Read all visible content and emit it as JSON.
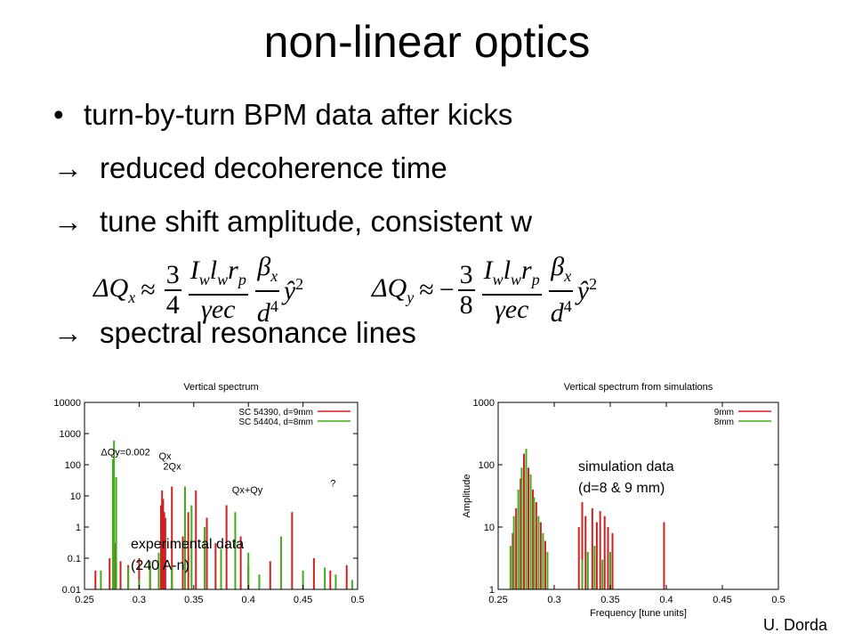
{
  "slide": {
    "title": "non-linear optics",
    "bullet": "•",
    "arrow": "→",
    "line1": "turn-by-turn BPM data after kicks",
    "line2": "reduced decoherence time",
    "line3": "tune shift amplitude, consistent w",
    "line4": "spectral resonance lines",
    "credit": "U. Dorda"
  },
  "formulas": {
    "left": {
      "lhs": "ΔQ",
      "sub": "x",
      "rel": "≈",
      "sign": "",
      "coef_num": "3",
      "coef_den": "4",
      "frac1_num": "I_w l_w r_p",
      "frac1_den": "γec",
      "frac2_num": "β",
      "frac2_sub": "x",
      "frac2_den": "d",
      "frac2_den_sup": "4",
      "tail": "ŷ",
      "tail_sup": "2"
    },
    "right": {
      "lhs": "ΔQ",
      "sub": "y",
      "rel": "≈",
      "sign": "−",
      "coef_num": "3",
      "coef_den": "8",
      "frac1_num": "I_w l_w r_p",
      "frac1_den": "γec",
      "frac2_num": "β",
      "frac2_sub": "x",
      "frac2_den": "d",
      "frac2_den_sup": "4",
      "tail": "ŷ",
      "tail_sup": "2"
    }
  },
  "labels": {
    "exp_line1": "experimental data",
    "exp_line2": "(240 A-n)",
    "sim_line1": "simulation data",
    "sim_line2": "(d=8 & 9 mm)"
  },
  "chart_data": [
    {
      "type": "bar",
      "title": "Vertical spectrum",
      "xlabel": "",
      "ylabel": "",
      "yscale": "log",
      "xlim": [
        0.25,
        0.5
      ],
      "ylim": [
        0.01,
        10000
      ],
      "xticks": [
        "0.25",
        "0.3",
        "0.35",
        "0.4",
        "0.45",
        "0.5"
      ],
      "yticks": [
        "0.01",
        "0.1",
        "1",
        "10",
        "100",
        "1000",
        "10000"
      ],
      "legend_position": "top-right",
      "grid": false,
      "colors": {
        "SC 54390, d=9mm": "#cc2222",
        "SC 54404, d=8mm": "#44aa22"
      },
      "series": [
        {
          "name": "SC 54390, d=9mm",
          "x": [
            0.26,
            0.273,
            0.278,
            0.283,
            0.29,
            0.3,
            0.31,
            0.32,
            0.321,
            0.322,
            0.323,
            0.324,
            0.33,
            0.34,
            0.345,
            0.352,
            0.362,
            0.37,
            0.38,
            0.393,
            0.4,
            0.42,
            0.44,
            0.46,
            0.475,
            0.49
          ],
          "values": [
            0.04,
            0.1,
            0.3,
            0.08,
            0.06,
            0.1,
            0.05,
            5,
            15,
            8,
            3,
            2,
            20,
            0.5,
            3,
            15,
            2,
            0.3,
            5,
            0.5,
            0.06,
            0.08,
            3,
            0.1,
            0.04,
            0.06
          ]
        },
        {
          "name": "SC 54404, d=8mm",
          "x": [
            0.265,
            0.276,
            0.277,
            0.279,
            0.29,
            0.3,
            0.31,
            0.318,
            0.33,
            0.342,
            0.348,
            0.36,
            0.375,
            0.388,
            0.4,
            0.41,
            0.43,
            0.45,
            0.47,
            0.48,
            0.495
          ],
          "values": [
            0.04,
            150,
            600,
            40,
            0.05,
            0.02,
            0.08,
            0.15,
            0.05,
            20,
            5,
            1,
            0.2,
            3,
            0.15,
            0.03,
            0.5,
            0.04,
            0.05,
            0.03,
            0.02
          ]
        }
      ],
      "annotations": [
        {
          "text": "ΔQy=0.002",
          "x": 0.265,
          "y": 200
        },
        {
          "text": "Qx",
          "x": 0.318,
          "y": 150
        },
        {
          "text": "2Qx",
          "x": 0.322,
          "y": 70
        },
        {
          "text": "Qx+Qy",
          "x": 0.385,
          "y": 12
        },
        {
          "text": "?",
          "x": 0.475,
          "y": 20
        }
      ]
    },
    {
      "type": "bar",
      "title": "Vertical spectrum from simulations",
      "xlabel": "Frequency [tune units]",
      "ylabel": "Amplitude",
      "yscale": "log",
      "xlim": [
        0.25,
        0.5
      ],
      "ylim": [
        1,
        1000
      ],
      "xticks": [
        "0.25",
        "0.3",
        "0.35",
        "0.4",
        "0.45",
        "0.5"
      ],
      "yticks": [
        "1",
        "10",
        "100",
        "1000"
      ],
      "legend_position": "top-right",
      "grid": false,
      "colors": {
        "9mm": "#cc2222",
        "8mm": "#44aa22"
      },
      "series": [
        {
          "name": "9mm",
          "x": [
            0.263,
            0.266,
            0.27,
            0.273,
            0.277,
            0.281,
            0.284,
            0.288,
            0.292,
            0.322,
            0.325,
            0.328,
            0.334,
            0.338,
            0.341,
            0.345,
            0.348,
            0.352,
            0.398
          ],
          "values": [
            8,
            20,
            60,
            150,
            90,
            40,
            25,
            12,
            6,
            10,
            25,
            15,
            20,
            12,
            18,
            15,
            10,
            8,
            12
          ]
        },
        {
          "name": "8mm",
          "x": [
            0.261,
            0.264,
            0.268,
            0.271,
            0.275,
            0.279,
            0.282,
            0.286,
            0.29,
            0.294,
            0.325,
            0.33,
            0.336,
            0.343,
            0.35
          ],
          "values": [
            5,
            15,
            40,
            90,
            180,
            70,
            30,
            15,
            8,
            4,
            3,
            4,
            5,
            3,
            4
          ]
        }
      ]
    }
  ]
}
